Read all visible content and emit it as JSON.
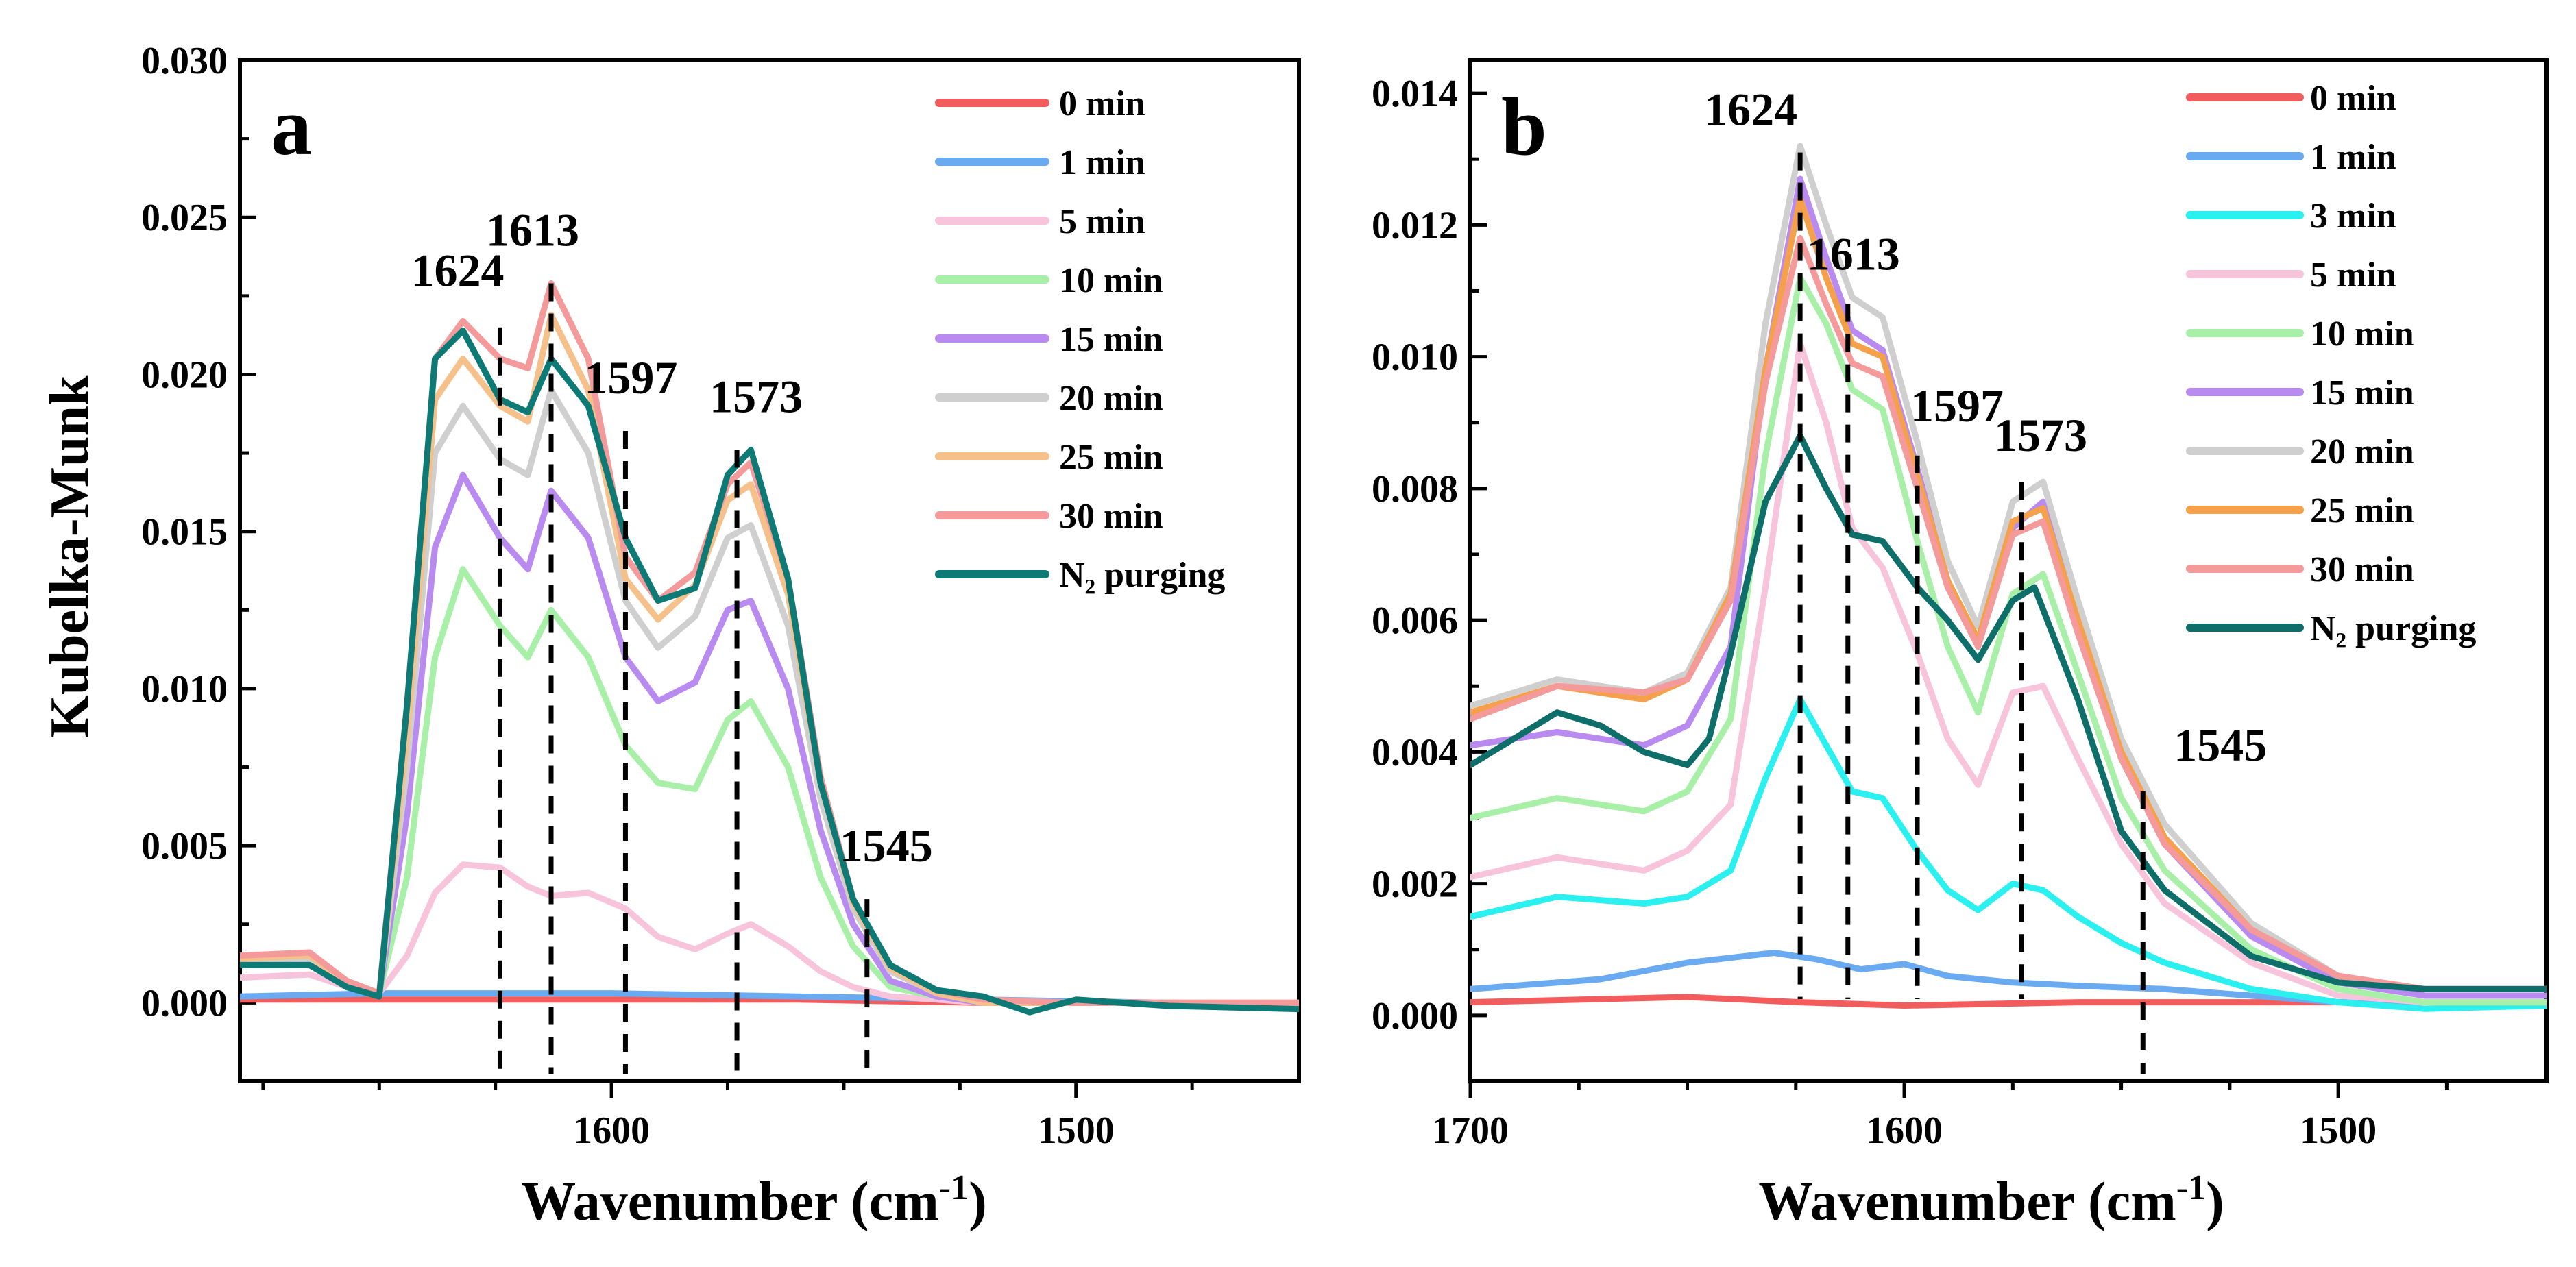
{
  "chart_data": [
    {
      "type": "line",
      "panel_label": "a",
      "xlabel": "Wavenumber (cm",
      "xlabel_sup": "-1",
      "xlabel_tail": ")",
      "ylabel": "Kubelka-Munk",
      "xlim": [
        1680,
        1452
      ],
      "ylim": [
        -0.0025,
        0.03
      ],
      "x_ticks": [
        1600,
        1500
      ],
      "x_tick_labels": [
        "1600",
        "1500"
      ],
      "y_ticks": [
        0.0,
        0.005,
        0.01,
        0.015,
        0.02,
        0.025,
        0.03
      ],
      "y_tick_labels": [
        "0.000",
        "0.005",
        "0.010",
        "0.015",
        "0.020",
        "0.025",
        "0.030"
      ],
      "legend_position": "top-right",
      "peak_markers": [
        {
          "label": "1624",
          "x": 1624,
          "y": 0.0215
        },
        {
          "label": "1613",
          "x": 1613,
          "y": 0.0229
        },
        {
          "label": "1597",
          "x": 1597,
          "y": 0.0182
        },
        {
          "label": "1573",
          "x": 1573,
          "y": 0.0176
        },
        {
          "label": "1545",
          "x": 1545,
          "y": 0.0033
        }
      ],
      "series": [
        {
          "name": "0 min",
          "color": "#f25c5c",
          "x": [
            1680,
            1640,
            1600,
            1560,
            1520,
            1480,
            1452
          ],
          "y": [
            0.0001,
            0.0001,
            0.0001,
            0.0001,
            0.0,
            0.0,
            0.0
          ]
        },
        {
          "name": "1 min",
          "color": "#6aaaf0",
          "x": [
            1680,
            1650,
            1640,
            1600,
            1560,
            1520,
            1480,
            1452
          ],
          "y": [
            0.0002,
            0.0003,
            0.0003,
            0.0003,
            0.0002,
            0.0001,
            0.0,
            0.0
          ]
        },
        {
          "name": "5 min",
          "color": "#f7c4dc",
          "x": [
            1680,
            1665,
            1657,
            1650,
            1644,
            1638,
            1632,
            1624,
            1618,
            1613,
            1605,
            1597,
            1590,
            1582,
            1575,
            1570,
            1562,
            1555,
            1548,
            1540,
            1530,
            1520,
            1500,
            1480,
            1452
          ],
          "y": [
            0.0008,
            0.0009,
            0.0005,
            0.0003,
            0.0015,
            0.0035,
            0.0044,
            0.0043,
            0.0037,
            0.0034,
            0.0035,
            0.003,
            0.0021,
            0.0017,
            0.0022,
            0.0025,
            0.0018,
            0.001,
            0.0005,
            0.0002,
            0.0001,
            0.0,
            0.0,
            0.0,
            0.0
          ]
        },
        {
          "name": "10 min",
          "color": "#a8f0a8",
          "x": [
            1680,
            1665,
            1657,
            1650,
            1644,
            1638,
            1632,
            1624,
            1618,
            1613,
            1605,
            1597,
            1590,
            1582,
            1575,
            1570,
            1562,
            1555,
            1548,
            1540,
            1530,
            1520,
            1500,
            1480,
            1452
          ],
          "y": [
            0.0012,
            0.0012,
            0.0006,
            0.0003,
            0.004,
            0.011,
            0.0138,
            0.012,
            0.011,
            0.0125,
            0.011,
            0.0082,
            0.007,
            0.0068,
            0.009,
            0.0096,
            0.0075,
            0.004,
            0.0018,
            0.0005,
            0.0002,
            0.0,
            0.0,
            0.0,
            0.0
          ]
        },
        {
          "name": "15 min",
          "color": "#b98af0",
          "x": [
            1680,
            1665,
            1657,
            1650,
            1644,
            1638,
            1632,
            1624,
            1618,
            1613,
            1605,
            1597,
            1590,
            1582,
            1575,
            1570,
            1562,
            1555,
            1548,
            1540,
            1530,
            1520,
            1500,
            1480,
            1452
          ],
          "y": [
            0.0012,
            0.0013,
            0.0006,
            0.0003,
            0.006,
            0.0145,
            0.0168,
            0.0148,
            0.0138,
            0.0163,
            0.0148,
            0.011,
            0.0096,
            0.0102,
            0.0125,
            0.0128,
            0.01,
            0.0055,
            0.0025,
            0.0007,
            0.0002,
            0.0,
            0.0,
            0.0,
            0.0
          ]
        },
        {
          "name": "20 min",
          "color": "#cfcfcf",
          "x": [
            1680,
            1665,
            1657,
            1650,
            1644,
            1638,
            1632,
            1624,
            1618,
            1613,
            1605,
            1597,
            1590,
            1582,
            1575,
            1570,
            1562,
            1555,
            1548,
            1540,
            1530,
            1520,
            1500,
            1480,
            1452
          ],
          "y": [
            0.0013,
            0.0014,
            0.0006,
            0.0003,
            0.0075,
            0.0175,
            0.019,
            0.0173,
            0.0168,
            0.0195,
            0.0175,
            0.0128,
            0.0113,
            0.0123,
            0.0148,
            0.0152,
            0.012,
            0.0065,
            0.003,
            0.001,
            0.0003,
            0.0,
            0.0,
            0.0,
            0.0
          ]
        },
        {
          "name": "25 min",
          "color": "#f5c08a",
          "x": [
            1680,
            1665,
            1657,
            1650,
            1644,
            1638,
            1632,
            1624,
            1618,
            1613,
            1605,
            1597,
            1590,
            1582,
            1575,
            1570,
            1562,
            1555,
            1548,
            1540,
            1530,
            1520,
            1500,
            1480,
            1452
          ],
          "y": [
            0.0014,
            0.0015,
            0.0006,
            0.0003,
            0.0085,
            0.0192,
            0.0205,
            0.019,
            0.0185,
            0.0219,
            0.0195,
            0.0135,
            0.0122,
            0.0133,
            0.016,
            0.0165,
            0.013,
            0.007,
            0.0032,
            0.0011,
            0.0003,
            0.0,
            0.0,
            0.0,
            0.0
          ]
        },
        {
          "name": "30 min",
          "color": "#f59a9a",
          "x": [
            1680,
            1665,
            1657,
            1650,
            1644,
            1638,
            1632,
            1624,
            1618,
            1613,
            1605,
            1597,
            1590,
            1582,
            1575,
            1570,
            1562,
            1555,
            1548,
            1540,
            1530,
            1520,
            1500,
            1480,
            1452
          ],
          "y": [
            0.0015,
            0.0016,
            0.0007,
            0.0003,
            0.0095,
            0.0205,
            0.0217,
            0.0205,
            0.0202,
            0.0229,
            0.0205,
            0.0142,
            0.0128,
            0.0137,
            0.0165,
            0.0172,
            0.0135,
            0.0072,
            0.0033,
            0.0012,
            0.0004,
            0.0001,
            0.0,
            0.0,
            0.0
          ]
        },
        {
          "name": "N₂ purging",
          "color": "#0e7a76",
          "x": [
            1680,
            1665,
            1657,
            1650,
            1644,
            1638,
            1632,
            1624,
            1618,
            1613,
            1605,
            1597,
            1590,
            1582,
            1575,
            1570,
            1562,
            1555,
            1548,
            1540,
            1530,
            1520,
            1510,
            1500,
            1490,
            1480,
            1452
          ],
          "y": [
            0.0012,
            0.0012,
            0.0005,
            0.0002,
            0.0095,
            0.0205,
            0.0214,
            0.0192,
            0.0188,
            0.0205,
            0.019,
            0.0148,
            0.0128,
            0.0132,
            0.0168,
            0.0176,
            0.0135,
            0.007,
            0.0033,
            0.0012,
            0.0004,
            0.0002,
            -0.0003,
            0.0001,
            0.0,
            -0.0001,
            -0.0002
          ]
        }
      ]
    },
    {
      "type": "line",
      "panel_label": "b",
      "xlabel": "Wavenumber (cm",
      "xlabel_sup": "-1",
      "xlabel_tail": ")",
      "ylabel": "",
      "xlim": [
        1700,
        1452
      ],
      "ylim": [
        -0.001,
        0.0145
      ],
      "x_ticks": [
        1700,
        1600,
        1500
      ],
      "x_tick_labels": [
        "1700",
        "1600",
        "1500"
      ],
      "y_ticks": [
        0.0,
        0.002,
        0.004,
        0.006,
        0.008,
        0.01,
        0.012,
        0.014
      ],
      "y_tick_labels": [
        "0.000",
        "0.002",
        "0.004",
        "0.006",
        "0.008",
        "0.010",
        "0.012",
        "0.014"
      ],
      "legend_position": "top-right",
      "peak_markers": [
        {
          "label": "1624",
          "x": 1624,
          "y": 0.0131
        },
        {
          "label": "1613",
          "x": 1613,
          "y": 0.0108
        },
        {
          "label": "1597",
          "x": 1597,
          "y": 0.0085
        },
        {
          "label": "1573",
          "x": 1573,
          "y": 0.0081
        },
        {
          "label": "1545",
          "x": 1545,
          "y": 0.0034
        }
      ],
      "series": [
        {
          "name": "0 min",
          "color": "#f25c5c",
          "x": [
            1700,
            1650,
            1624,
            1600,
            1560,
            1500,
            1452
          ],
          "y": [
            0.0002,
            0.00028,
            0.0002,
            0.00015,
            0.0002,
            0.0002,
            0.0002
          ]
        },
        {
          "name": "1 min",
          "color": "#6aaaf0",
          "x": [
            1700,
            1670,
            1650,
            1630,
            1620,
            1610,
            1600,
            1590,
            1575,
            1560,
            1540,
            1520,
            1500,
            1480,
            1452
          ],
          "y": [
            0.0004,
            0.00055,
            0.0008,
            0.00095,
            0.00085,
            0.0007,
            0.00078,
            0.0006,
            0.0005,
            0.00045,
            0.0004,
            0.0003,
            0.0002,
            0.0002,
            0.0002
          ]
        },
        {
          "name": "3 min",
          "color": "#2af0f0",
          "x": [
            1700,
            1680,
            1660,
            1650,
            1640,
            1632,
            1624,
            1618,
            1612,
            1605,
            1597,
            1590,
            1583,
            1575,
            1568,
            1560,
            1550,
            1540,
            1520,
            1500,
            1480,
            1452
          ],
          "y": [
            0.0015,
            0.0018,
            0.0017,
            0.0018,
            0.0022,
            0.0036,
            0.0048,
            0.0041,
            0.0034,
            0.0033,
            0.0025,
            0.0019,
            0.0016,
            0.002,
            0.0019,
            0.0015,
            0.0011,
            0.0008,
            0.0004,
            0.0002,
            0.0001,
            0.00015
          ]
        },
        {
          "name": "5 min",
          "color": "#f7c4dc",
          "x": [
            1700,
            1680,
            1660,
            1650,
            1640,
            1632,
            1624,
            1618,
            1612,
            1605,
            1597,
            1590,
            1583,
            1575,
            1568,
            1560,
            1550,
            1540,
            1520,
            1500,
            1480,
            1452
          ],
          "y": [
            0.0021,
            0.0024,
            0.0022,
            0.0025,
            0.0032,
            0.0065,
            0.0102,
            0.009,
            0.0074,
            0.0068,
            0.0055,
            0.0042,
            0.0035,
            0.0049,
            0.005,
            0.0039,
            0.0026,
            0.0017,
            0.0008,
            0.0003,
            0.0002,
            0.0002
          ]
        },
        {
          "name": "10 min",
          "color": "#a8f0a8",
          "x": [
            1700,
            1680,
            1660,
            1650,
            1640,
            1632,
            1624,
            1618,
            1612,
            1605,
            1597,
            1590,
            1583,
            1575,
            1568,
            1560,
            1550,
            1540,
            1520,
            1500,
            1480,
            1452
          ],
          "y": [
            0.003,
            0.0033,
            0.0031,
            0.0034,
            0.0045,
            0.0085,
            0.0112,
            0.0105,
            0.0095,
            0.0092,
            0.0072,
            0.0056,
            0.0046,
            0.0064,
            0.0067,
            0.0052,
            0.0033,
            0.0022,
            0.001,
            0.0004,
            0.0002,
            0.0002
          ]
        },
        {
          "name": "15 min",
          "color": "#b98af0",
          "x": [
            1700,
            1680,
            1660,
            1650,
            1640,
            1632,
            1624,
            1618,
            1612,
            1605,
            1597,
            1590,
            1583,
            1575,
            1568,
            1560,
            1550,
            1540,
            1520,
            1500,
            1480,
            1452
          ],
          "y": [
            0.0041,
            0.0043,
            0.0041,
            0.0044,
            0.0056,
            0.0098,
            0.0127,
            0.0115,
            0.0104,
            0.0101,
            0.0083,
            0.0066,
            0.0056,
            0.0074,
            0.0078,
            0.006,
            0.0039,
            0.0026,
            0.0012,
            0.0005,
            0.0003,
            0.0003
          ]
        },
        {
          "name": "20 min",
          "color": "#cfcfcf",
          "x": [
            1700,
            1680,
            1660,
            1650,
            1640,
            1632,
            1624,
            1618,
            1612,
            1605,
            1597,
            1590,
            1583,
            1575,
            1568,
            1560,
            1550,
            1540,
            1520,
            1500,
            1480,
            1452
          ],
          "y": [
            0.0047,
            0.0051,
            0.0049,
            0.0052,
            0.0065,
            0.0105,
            0.0132,
            0.012,
            0.0109,
            0.0106,
            0.0087,
            0.0069,
            0.0059,
            0.0078,
            0.0081,
            0.0063,
            0.0042,
            0.0029,
            0.0014,
            0.0006,
            0.0004,
            0.0004
          ]
        },
        {
          "name": "25 min",
          "color": "#f5a04a",
          "x": [
            1700,
            1680,
            1660,
            1650,
            1640,
            1632,
            1624,
            1618,
            1612,
            1605,
            1597,
            1590,
            1583,
            1575,
            1568,
            1560,
            1550,
            1540,
            1520,
            1500,
            1480,
            1452
          ],
          "y": [
            0.0046,
            0.005,
            0.0048,
            0.0051,
            0.0064,
            0.0098,
            0.0124,
            0.0112,
            0.0102,
            0.01,
            0.0082,
            0.0066,
            0.0057,
            0.0075,
            0.0077,
            0.006,
            0.004,
            0.0027,
            0.0013,
            0.0006,
            0.0004,
            0.0004
          ]
        },
        {
          "name": "30 min",
          "color": "#f59a9a",
          "x": [
            1700,
            1680,
            1660,
            1650,
            1640,
            1632,
            1624,
            1618,
            1612,
            1605,
            1597,
            1590,
            1583,
            1575,
            1568,
            1560,
            1550,
            1540,
            1520,
            1500,
            1480,
            1452
          ],
          "y": [
            0.0045,
            0.005,
            0.0049,
            0.0051,
            0.0063,
            0.0096,
            0.0118,
            0.0108,
            0.0099,
            0.0097,
            0.008,
            0.0065,
            0.0056,
            0.0073,
            0.0075,
            0.0058,
            0.0039,
            0.0026,
            0.0013,
            0.0006,
            0.0004,
            0.0004
          ]
        },
        {
          "name": "N₂ purging",
          "color": "#0e6e6a",
          "x": [
            1700,
            1690,
            1680,
            1670,
            1660,
            1650,
            1645,
            1640,
            1632,
            1624,
            1618,
            1612,
            1605,
            1597,
            1590,
            1583,
            1575,
            1570,
            1560,
            1550,
            1540,
            1520,
            1500,
            1480,
            1452
          ],
          "y": [
            0.0038,
            0.0042,
            0.0046,
            0.0044,
            0.004,
            0.0038,
            0.0042,
            0.0055,
            0.0078,
            0.0088,
            0.008,
            0.0073,
            0.0072,
            0.0065,
            0.006,
            0.0054,
            0.0063,
            0.0065,
            0.0048,
            0.0028,
            0.0019,
            0.0009,
            0.0005,
            0.0004,
            0.0004
          ]
        }
      ]
    }
  ]
}
